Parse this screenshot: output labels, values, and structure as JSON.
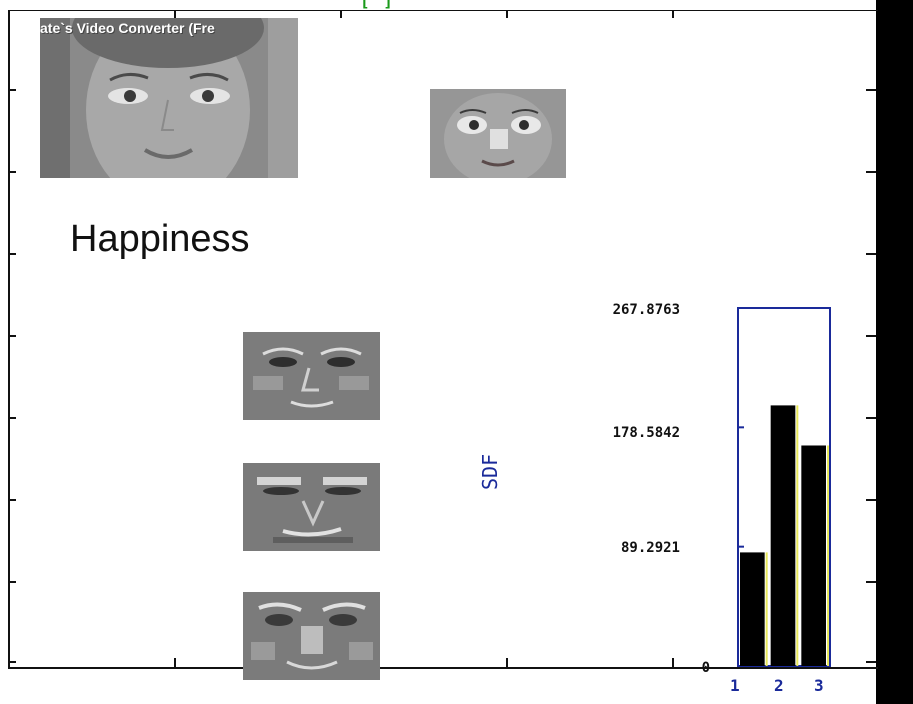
{
  "window": {
    "top_title_fragment": "[ ]",
    "watermark": "ate`s Video Converter (Fre"
  },
  "labels": {
    "emotion": "Happiness",
    "ylabel": "SDF"
  },
  "colors": {
    "bar_fill": "#000000",
    "axes_color": "#1a2a9a",
    "title_green": "#1a9a1a"
  },
  "icons": {
    "face_large": "face-photo",
    "face_small": "face-crop",
    "filtered_1": "face-filtered",
    "filtered_2": "face-filtered",
    "filtered_3": "face-filtered"
  },
  "chart_data": {
    "type": "bar",
    "categories": [
      "1",
      "2",
      "3"
    ],
    "values": [
      85,
      195,
      165
    ],
    "ytick_labels": [
      "0",
      "89.2921",
      "178.5842",
      "267.8763"
    ],
    "ylim": [
      0,
      267.8763
    ],
    "xlabel": "",
    "ylabel": "SDF",
    "title": ""
  }
}
